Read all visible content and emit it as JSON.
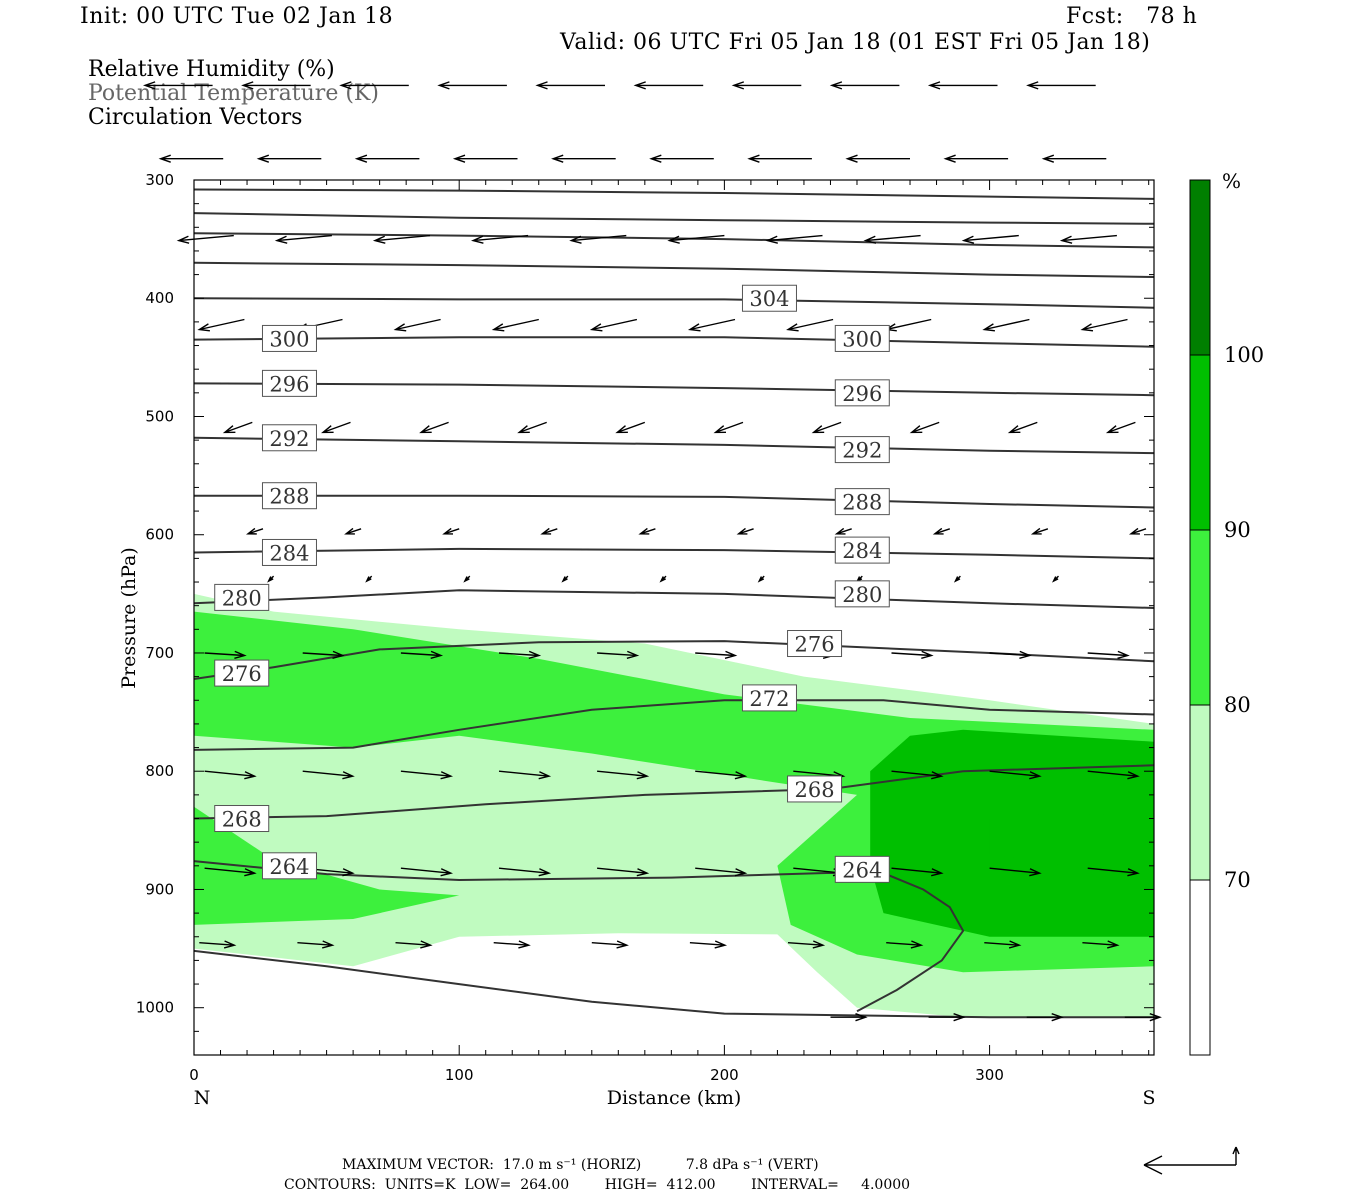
{
  "header": {
    "init": "Init: 00 UTC Tue 02 Jan 18",
    "fcst": "Fcst:   78 h",
    "valid": "Valid: 06 UTC Fri 05 Jan 18 (01 EST Fri 05 Jan 18)"
  },
  "legend": {
    "rh": "Relative Humidity (%)",
    "theta": "Potential Temperature (K)",
    "vectors": "Circulation Vectors"
  },
  "footer": {
    "max_vector": "MAXIMUM VECTOR:  17.0 m s⁻¹ (HORIZ)          7.8 dPa s⁻¹ (VERT)",
    "contours": "CONTOURS:  UNITS=K  LOW=  264.00        HIGH=  412.00        INTERVAL=     4.0000"
  },
  "colors": {
    "rh70": "#c0fbc0",
    "rh80": "#3df03d",
    "rh90": "#00bf00",
    "rh100": "#007f00",
    "contour": "#333333"
  },
  "chart_data": {
    "type": "contour-cross-section",
    "xlabel": "Distance (km)",
    "ylabel": "Pressure (hPa)",
    "xlim": [
      0,
      362
    ],
    "ylim": [
      300,
      1040
    ],
    "x_ticks": [
      0,
      100,
      200,
      300
    ],
    "y_ticks": [
      300,
      400,
      500,
      600,
      700,
      800,
      900,
      1000
    ],
    "x_end_labels": {
      "left": "N",
      "right": "S"
    },
    "colorbar": {
      "unit": "%",
      "levels": [
        70,
        80,
        90,
        100
      ],
      "colors": [
        "#ffffff",
        "#c0fbc0",
        "#3df03d",
        "#00bf00",
        "#007f00"
      ]
    },
    "rh_regions": [
      {
        "level": 70,
        "points": [
          [
            0,
            650
          ],
          [
            30,
            665
          ],
          [
            100,
            680
          ],
          [
            170,
            692
          ],
          [
            230,
            720
          ],
          [
            300,
            740
          ],
          [
            362,
            760
          ],
          [
            362,
            1008
          ],
          [
            290,
            1008
          ],
          [
            250,
            1000
          ],
          [
            235,
            970
          ],
          [
            220,
            938
          ],
          [
            160,
            937
          ],
          [
            100,
            940
          ],
          [
            60,
            965
          ],
          [
            0,
            950
          ]
        ]
      },
      {
        "level": 80,
        "points": [
          [
            0,
            665
          ],
          [
            60,
            680
          ],
          [
            130,
            705
          ],
          [
            200,
            735
          ],
          [
            270,
            755
          ],
          [
            362,
            765
          ],
          [
            362,
            965
          ],
          [
            290,
            970
          ],
          [
            250,
            955
          ],
          [
            225,
            930
          ],
          [
            220,
            880
          ],
          [
            240,
            840
          ],
          [
            250,
            820
          ],
          [
            215,
            808
          ],
          [
            150,
            785
          ],
          [
            100,
            770
          ],
          [
            60,
            780
          ],
          [
            0,
            770
          ]
        ]
      },
      {
        "level": 80,
        "points": [
          [
            0,
            830
          ],
          [
            30,
            875
          ],
          [
            70,
            900
          ],
          [
            100,
            905
          ],
          [
            60,
            925
          ],
          [
            0,
            930
          ]
        ]
      },
      {
        "level": 90,
        "points": [
          [
            255,
            800
          ],
          [
            270,
            770
          ],
          [
            290,
            765
          ],
          [
            362,
            775
          ],
          [
            362,
            940
          ],
          [
            300,
            940
          ],
          [
            260,
            920
          ],
          [
            255,
            880
          ]
        ]
      },
      {
        "level": 90,
        "points": [
          [
            300,
            840
          ],
          [
            330,
            835
          ],
          [
            362,
            840
          ],
          [
            362,
            880
          ],
          [
            330,
            880
          ],
          [
            300,
            870
          ]
        ]
      }
    ],
    "theta_contours": [
      {
        "label": "",
        "points": [
          [
            0,
            308
          ],
          [
            100,
            309
          ],
          [
            200,
            311
          ],
          [
            300,
            314
          ],
          [
            362,
            316
          ]
        ]
      },
      {
        "label": "",
        "points": [
          [
            0,
            328
          ],
          [
            100,
            332
          ],
          [
            200,
            334
          ],
          [
            300,
            336
          ],
          [
            362,
            337
          ]
        ]
      },
      {
        "label": "",
        "points": [
          [
            0,
            345
          ],
          [
            100,
            347
          ],
          [
            200,
            350
          ],
          [
            300,
            355
          ],
          [
            362,
            357
          ]
        ]
      },
      {
        "label": "",
        "points": [
          [
            0,
            370
          ],
          [
            100,
            372
          ],
          [
            200,
            375
          ],
          [
            300,
            380
          ],
          [
            362,
            382
          ]
        ]
      },
      {
        "label": "304",
        "label_at": [
          217,
          400
        ],
        "points": [
          [
            0,
            400
          ],
          [
            100,
            401
          ],
          [
            200,
            401
          ],
          [
            300,
            405
          ],
          [
            362,
            408
          ]
        ]
      },
      {
        "label": "300",
        "label_at": [
          36,
          434
        ],
        "label2_at": [
          252,
          434
        ],
        "points": [
          [
            0,
            435
          ],
          [
            100,
            433
          ],
          [
            200,
            433
          ],
          [
            300,
            438
          ],
          [
            362,
            441
          ]
        ]
      },
      {
        "label": "296",
        "label_at": [
          36,
          472
        ],
        "label2_at": [
          252,
          480
        ],
        "points": [
          [
            0,
            472
          ],
          [
            100,
            473
          ],
          [
            200,
            476
          ],
          [
            300,
            480
          ],
          [
            362,
            482
          ]
        ]
      },
      {
        "label": "292",
        "label_at": [
          36,
          518
        ],
        "label2_at": [
          252,
          528
        ],
        "points": [
          [
            0,
            518
          ],
          [
            100,
            521
          ],
          [
            200,
            524
          ],
          [
            300,
            529
          ],
          [
            362,
            531
          ]
        ]
      },
      {
        "label": "288",
        "label_at": [
          36,
          567
        ],
        "label2_at": [
          252,
          572
        ],
        "points": [
          [
            0,
            567
          ],
          [
            100,
            567
          ],
          [
            200,
            568
          ],
          [
            300,
            574
          ],
          [
            362,
            577
          ]
        ]
      },
      {
        "label": "284",
        "label_at": [
          36,
          615
        ],
        "label2_at": [
          252,
          613
        ],
        "points": [
          [
            0,
            615
          ],
          [
            100,
            612
          ],
          [
            200,
            613
          ],
          [
            300,
            617
          ],
          [
            362,
            620
          ]
        ]
      },
      {
        "label": "280",
        "label_at": [
          18,
          653
        ],
        "label2_at": [
          252,
          650
        ],
        "points": [
          [
            0,
            658
          ],
          [
            50,
            653
          ],
          [
            100,
            647
          ],
          [
            200,
            650
          ],
          [
            300,
            658
          ],
          [
            362,
            662
          ]
        ]
      },
      {
        "label": "276",
        "label_at": [
          234,
          692
        ],
        "label2_at": [
          18,
          717
        ],
        "points": [
          [
            0,
            722
          ],
          [
            30,
            712
          ],
          [
            70,
            697
          ],
          [
            130,
            691
          ],
          [
            200,
            690
          ],
          [
            300,
            700
          ],
          [
            362,
            707
          ]
        ]
      },
      {
        "label": "272",
        "label_at": [
          217,
          738
        ],
        "points": [
          [
            0,
            782
          ],
          [
            60,
            780
          ],
          [
            100,
            765
          ],
          [
            150,
            748
          ],
          [
            200,
            740
          ],
          [
            260,
            740
          ],
          [
            300,
            748
          ],
          [
            362,
            752
          ]
        ]
      },
      {
        "label": "268",
        "label_at": [
          234,
          815
        ],
        "label2_at": [
          18,
          840
        ],
        "points": [
          [
            0,
            840
          ],
          [
            50,
            838
          ],
          [
            110,
            828
          ],
          [
            170,
            820
          ],
          [
            240,
            815
          ],
          [
            290,
            800
          ],
          [
            362,
            795
          ]
        ]
      },
      {
        "label": "264",
        "label_at": [
          36,
          880
        ],
        "label2_at": [
          252,
          883
        ],
        "points": [
          [
            0,
            876
          ],
          [
            50,
            887
          ],
          [
            100,
            892
          ],
          [
            180,
            890
          ],
          [
            240,
            886
          ],
          [
            262,
            888
          ],
          [
            275,
            900
          ],
          [
            285,
            915
          ],
          [
            290,
            935
          ],
          [
            282,
            960
          ],
          [
            265,
            985
          ],
          [
            250,
            1003
          ]
        ]
      },
      {
        "label": "",
        "points": [
          [
            0,
            952
          ],
          [
            50,
            965
          ],
          [
            100,
            980
          ],
          [
            150,
            995
          ],
          [
            200,
            1005
          ],
          [
            300,
            1008
          ],
          [
            362,
            1008
          ]
        ]
      }
    ],
    "vectors": [
      {
        "p": 335,
        "y0": 220,
        "x_start": 7,
        "step": 37,
        "n": 10,
        "u": -27,
        "v": 0
      },
      {
        "p": 390,
        "y0": 282,
        "x_start": 11,
        "step": 37,
        "n": 10,
        "u": -25,
        "v": 0
      },
      {
        "p": 445,
        "y0": 347,
        "x_start": 15,
        "step": 37,
        "n": 10,
        "u": -22,
        "v": 2
      },
      {
        "p": 500,
        "y0": 418,
        "x_start": 19,
        "step": 37,
        "n": 10,
        "u": -18,
        "v": 4
      },
      {
        "p": 560,
        "y0": 505,
        "x_start": 22,
        "step": 37,
        "n": 10,
        "u": -11,
        "v": 4
      },
      {
        "p": 640,
        "y0": 595,
        "x_start": 26,
        "step": 37,
        "n": 10,
        "u": -6,
        "v": 2
      },
      {
        "p": 700,
        "y0": 635,
        "x_start": 30,
        "step": 37,
        "n": 10,
        "u": -2,
        "v": 2
      },
      {
        "p": 740,
        "y0": 700,
        "x_start": 4,
        "step": 37,
        "n": 10,
        "u": 16,
        "v": 1
      },
      {
        "p": 830,
        "y0": 800,
        "x_start": 4,
        "step": 37,
        "n": 10,
        "u": 20,
        "v": 2
      },
      {
        "p": 900,
        "y0": 882,
        "x_start": 4,
        "step": 37,
        "n": 10,
        "u": 20,
        "v": 2
      },
      {
        "p": 950,
        "y0": 945,
        "x_start": 2,
        "step": 37,
        "n": 10,
        "u": 14,
        "v": 1
      },
      {
        "p": 1005,
        "y0": 1008,
        "x_start": 240,
        "step": 37,
        "n": 4,
        "u": 14,
        "v": 0
      }
    ]
  }
}
